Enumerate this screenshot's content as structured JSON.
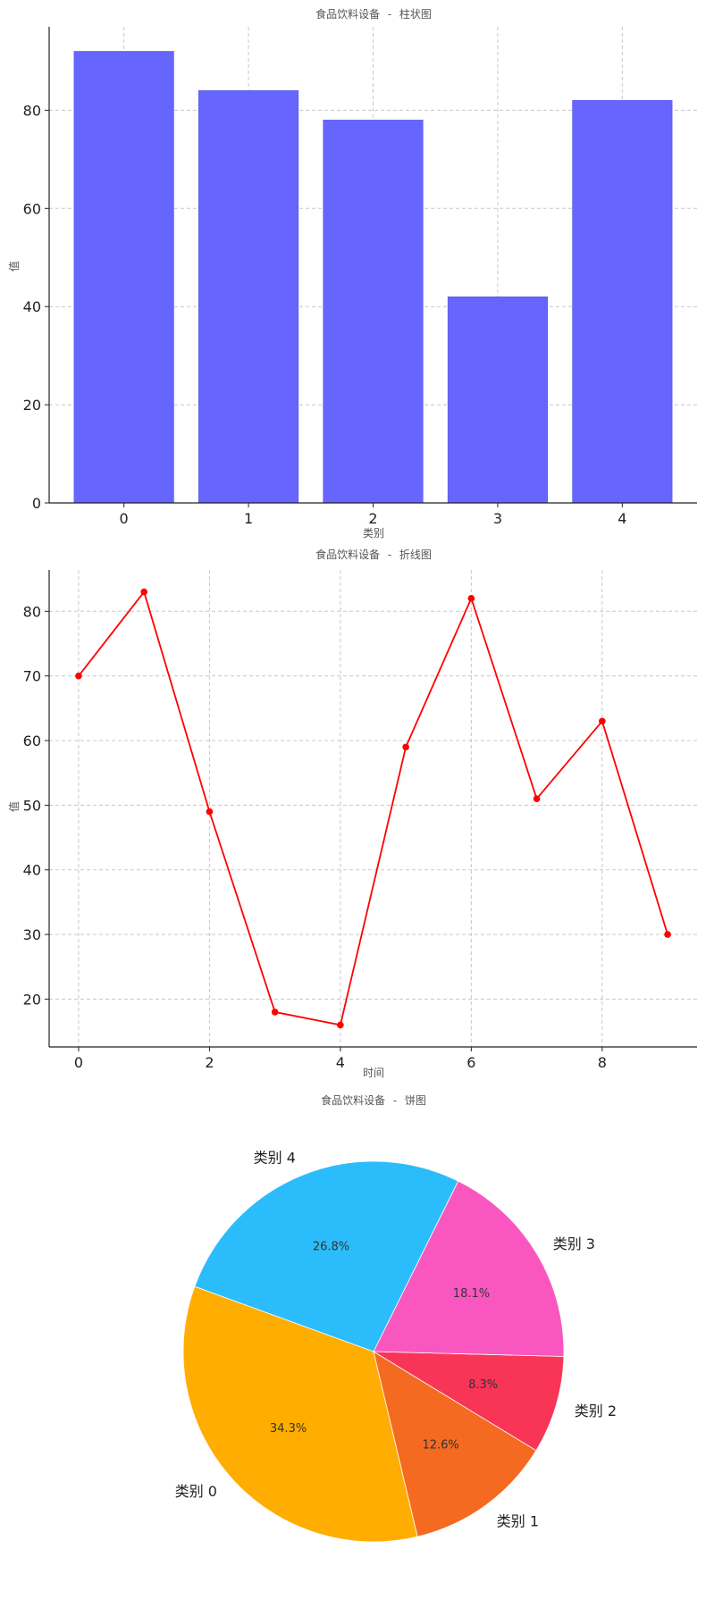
{
  "chart_data": [
    {
      "type": "bar",
      "title": "食品饮料设备 - 柱状图",
      "xlabel": "类别",
      "ylabel": "值",
      "categories": [
        "0",
        "1",
        "2",
        "3",
        "4"
      ],
      "values": [
        92,
        84,
        78,
        42,
        82
      ],
      "ylim": [
        0,
        97
      ],
      "yticks": [
        0,
        20,
        40,
        60,
        80
      ],
      "color": "#6666ff",
      "grid": true
    },
    {
      "type": "line",
      "title": "食品饮料设备 - 折线图",
      "xlabel": "时间",
      "ylabel": "值",
      "x": [
        0,
        1,
        2,
        3,
        4,
        5,
        6,
        7,
        8,
        9
      ],
      "values": [
        70,
        83,
        49,
        18,
        16,
        59,
        82,
        51,
        63,
        30
      ],
      "xlim": [
        -0.45,
        9.45
      ],
      "ylim": [
        12.6,
        86.4
      ],
      "xticks": [
        0,
        2,
        4,
        6,
        8
      ],
      "yticks": [
        20,
        30,
        40,
        50,
        60,
        70,
        80
      ],
      "color": "#ff0000",
      "grid": true
    },
    {
      "type": "pie",
      "title": "食品饮料设备 - 饼图",
      "labels": [
        "类别 0",
        "类别 1",
        "类别 2",
        "类别 3",
        "类别 4"
      ],
      "values": [
        34.3,
        12.6,
        8.3,
        18.1,
        26.8
      ],
      "percent_labels": [
        "34.3%",
        "12.6%",
        "8.3%",
        "18.1%",
        "26.8%"
      ],
      "colors": [
        "#ffad00",
        "#f46a21",
        "#f83557",
        "#f957bf",
        "#2bbdfb"
      ]
    }
  ]
}
